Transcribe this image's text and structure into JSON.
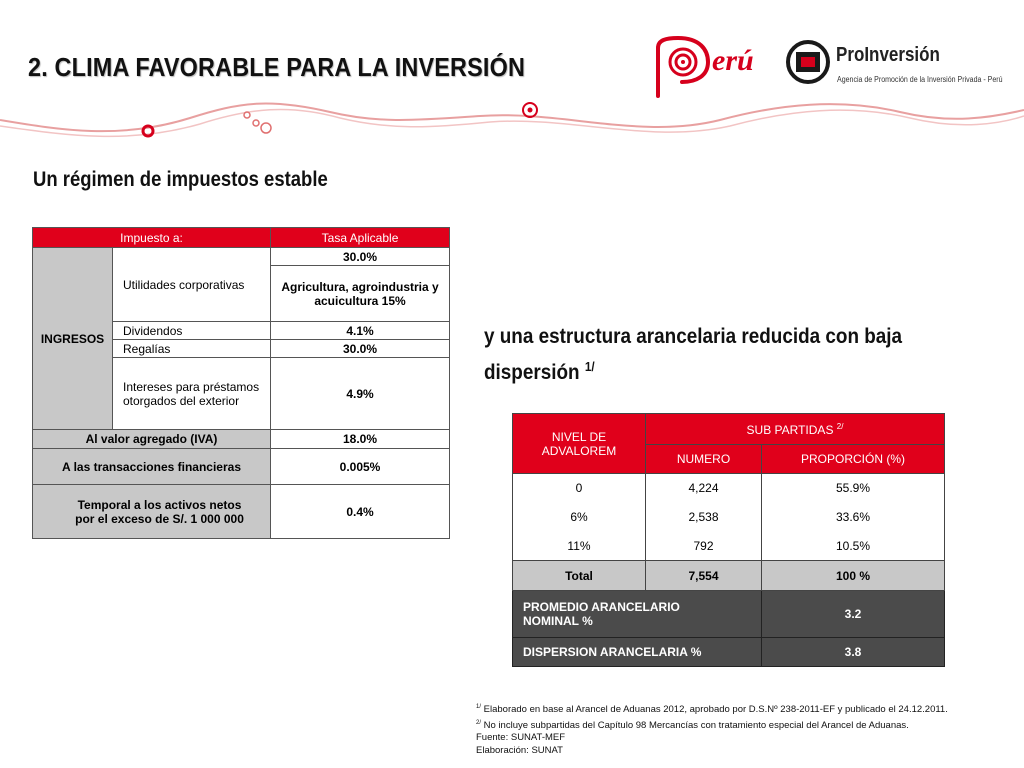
{
  "header": {
    "title": "2.  CLIMA FAVORABLE PARA LA INVERSIÓN",
    "peru_logo_text": "erú",
    "proinversion_name": "ProInversión",
    "proinversion_tagline": "Agencia de Promoción de la Inversión Privada - Perú"
  },
  "subtitle": "Un régimen de impuestos estable",
  "subtitle2": {
    "text": "y una estructura arancelaria reducida con baja dispersión",
    "sup": "1/"
  },
  "tax_table": {
    "headers": [
      "Impuesto a:",
      "Tasa Aplicable"
    ],
    "ingresos_label": "INGRESOS",
    "utilidades_label": "Utilidades corporativas",
    "utilidades_rate": "30.0%",
    "utilidades_special": "Agricultura, agroindustria y acuicultura 15%",
    "dividendos_label": "Dividendos",
    "dividendos_rate": "4.1%",
    "regalias_label": "Regalías",
    "regalias_rate": "30.0%",
    "intereses_label": "Intereses para préstamos otorgados del exterior",
    "intereses_rate": "4.9%",
    "iva_label": "Al valor agregado (IVA)",
    "iva_rate": "18.0%",
    "itf_label": "A las transacciones financieras",
    "itf_rate": "0.005%",
    "atan_label": "Temporal a los activos netos por el exceso de S/. 1 000 000",
    "atan_rate": "0.4%"
  },
  "tariff_table": {
    "nivel_header": "NIVEL DE ADVALOREM",
    "sub_header": "SUB PARTIDAS",
    "sub_header_sup": "2/",
    "numero_header": "NUMERO",
    "proporcion_header": "PROPORCIÓN (%)",
    "rows": [
      {
        "nivel": "0",
        "numero": "4,224",
        "proporcion": "55.9%"
      },
      {
        "nivel": "6%",
        "numero": "2,538",
        "proporcion": "33.6%"
      },
      {
        "nivel": "11%",
        "numero": "792",
        "proporcion": "10.5%"
      }
    ],
    "total_label": "Total",
    "total_numero": "7,554",
    "total_proporcion": "100 %",
    "promedio_label": "PROMEDIO  ARANCELARIO NOMINAL %",
    "promedio_value": "3.2",
    "dispersion_label": "DISPERSION ARANCELARIA %",
    "dispersion_value": "3.8"
  },
  "notes": {
    "note1_sup": "1/",
    "note1": " Elaborado en base al Arancel de Aduanas 2012, aprobado por D.S.Nº 238-2011-EF y publicado el 24.12.2011.",
    "note2_sup": "2/",
    "note2": " No incluye subpartidas del Capítulo 98 Mercancías con tratamiento especial del Arancel de Aduanas.",
    "fuente": "Fuente: SUNAT-MEF",
    "elaboracion": "Elaboración: SUNAT"
  },
  "colors": {
    "accent_red": "#e0001b",
    "header_gray": "#c8c8c8",
    "dark_gray": "#4b4b4b"
  }
}
